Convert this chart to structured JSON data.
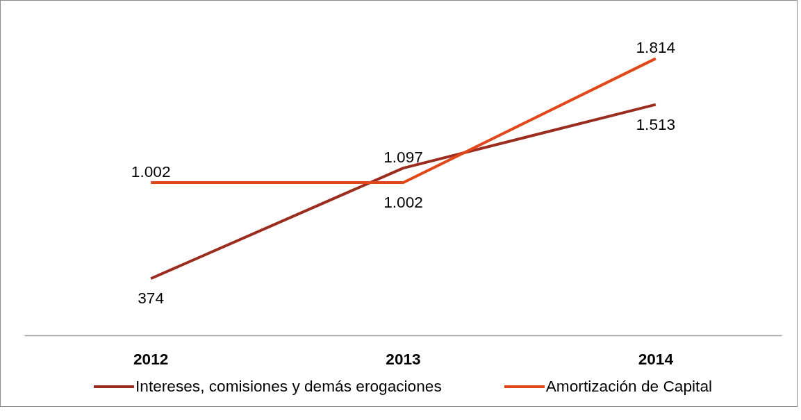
{
  "chart_data": {
    "type": "line",
    "categories": [
      "2012",
      "2013",
      "2014"
    ],
    "series": [
      {
        "name": "Intereses, comisiones y demás erogaciones",
        "color": "#9b2d1f",
        "values": [
          374,
          1097,
          1513
        ],
        "value_labels": [
          "374",
          "1.097",
          "1.513"
        ]
      },
      {
        "name": "Amortización de Capital",
        "color": "#e0481a",
        "values": [
          1002,
          1002,
          1814
        ],
        "value_labels": [
          "1.002",
          "1.002",
          "1.814"
        ]
      }
    ],
    "tick_labels": "x",
    "grid": false,
    "legend": "bottom",
    "marker": "none",
    "line_style": "solid"
  }
}
